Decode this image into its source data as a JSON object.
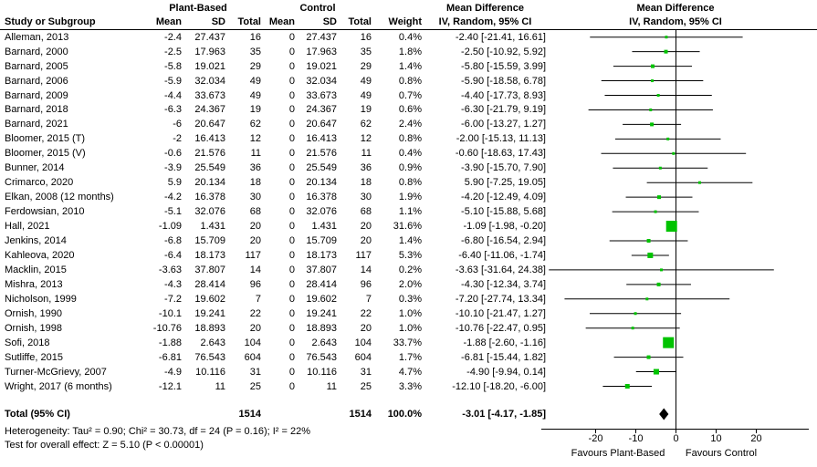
{
  "header": {
    "study": "Study or Subgroup",
    "group1": "Plant-Based",
    "group2": "Control",
    "mean": "Mean",
    "sd": "SD",
    "total": "Total",
    "weight": "Weight",
    "md_title": "Mean Difference",
    "md_subtitle": "IV, Random, 95% CI"
  },
  "footer": {
    "heterogeneity": "Heterogeneity: Tau² = 0.90; Chi² = 30.73, df = 24 (P = 0.16); I² = 22%",
    "overall_effect": "Test for overall effect: Z = 5.10 (P < 0.00001)"
  },
  "chart_data": {
    "type": "forest",
    "title": "Mean Difference — IV, Random, 95% CI",
    "xlim": [
      -33.5,
      33.5
    ],
    "x_ticks": [
      -20,
      -10,
      0,
      10,
      20
    ],
    "favours_left": "Favours Plant-Based",
    "favours_right": "Favours Control",
    "marker_color": "#00c300",
    "line_color": "#000000",
    "studies": [
      {
        "name": "Alleman, 2013",
        "pb_mean": "-2.4",
        "pb_sd": "27.437",
        "pb_total": "16",
        "c_mean": "0",
        "c_sd": "27.437",
        "c_total": "16",
        "weight": "0.4%",
        "ci_label": "-2.40 [-21.41, 16.61]",
        "md": -2.4,
        "lo": -21.41,
        "hi": 16.61
      },
      {
        "name": "Barnard, 2000",
        "pb_mean": "-2.5",
        "pb_sd": "17.963",
        "pb_total": "35",
        "c_mean": "0",
        "c_sd": "17.963",
        "c_total": "35",
        "weight": "1.8%",
        "ci_label": "-2.50 [-10.92, 5.92]",
        "md": -2.5,
        "lo": -10.92,
        "hi": 5.92
      },
      {
        "name": "Barnard, 2005",
        "pb_mean": "-5.8",
        "pb_sd": "19.021",
        "pb_total": "29",
        "c_mean": "0",
        "c_sd": "19.021",
        "c_total": "29",
        "weight": "1.4%",
        "ci_label": "-5.80 [-15.59, 3.99]",
        "md": -5.8,
        "lo": -15.59,
        "hi": 3.99
      },
      {
        "name": "Barnard, 2006",
        "pb_mean": "-5.9",
        "pb_sd": "32.034",
        "pb_total": "49",
        "c_mean": "0",
        "c_sd": "32.034",
        "c_total": "49",
        "weight": "0.8%",
        "ci_label": "-5.90 [-18.58, 6.78]",
        "md": -5.9,
        "lo": -18.58,
        "hi": 6.78
      },
      {
        "name": "Barnard, 2009",
        "pb_mean": "-4.4",
        "pb_sd": "33.673",
        "pb_total": "49",
        "c_mean": "0",
        "c_sd": "33.673",
        "c_total": "49",
        "weight": "0.7%",
        "ci_label": "-4.40 [-17.73, 8.93]",
        "md": -4.4,
        "lo": -17.73,
        "hi": 8.93
      },
      {
        "name": "Barnard, 2018",
        "pb_mean": "-6.3",
        "pb_sd": "24.367",
        "pb_total": "19",
        "c_mean": "0",
        "c_sd": "24.367",
        "c_total": "19",
        "weight": "0.6%",
        "ci_label": "-6.30 [-21.79, 9.19]",
        "md": -6.3,
        "lo": -21.79,
        "hi": 9.19
      },
      {
        "name": "Barnard, 2021",
        "pb_mean": "-6",
        "pb_sd": "20.647",
        "pb_total": "62",
        "c_mean": "0",
        "c_sd": "20.647",
        "c_total": "62",
        "weight": "2.4%",
        "ci_label": "-6.00 [-13.27, 1.27]",
        "md": -6.0,
        "lo": -13.27,
        "hi": 1.27
      },
      {
        "name": "Bloomer, 2015 (T)",
        "pb_mean": "-2",
        "pb_sd": "16.413",
        "pb_total": "12",
        "c_mean": "0",
        "c_sd": "16.413",
        "c_total": "12",
        "weight": "0.8%",
        "ci_label": "-2.00 [-15.13, 11.13]",
        "md": -2.0,
        "lo": -15.13,
        "hi": 11.13
      },
      {
        "name": "Bloomer, 2015 (V)",
        "pb_mean": "-0.6",
        "pb_sd": "21.576",
        "pb_total": "11",
        "c_mean": "0",
        "c_sd": "21.576",
        "c_total": "11",
        "weight": "0.4%",
        "ci_label": "-0.60 [-18.63, 17.43]",
        "md": -0.6,
        "lo": -18.63,
        "hi": 17.43
      },
      {
        "name": "Bunner, 2014",
        "pb_mean": "-3.9",
        "pb_sd": "25.549",
        "pb_total": "36",
        "c_mean": "0",
        "c_sd": "25.549",
        "c_total": "36",
        "weight": "0.9%",
        "ci_label": "-3.90 [-15.70, 7.90]",
        "md": -3.9,
        "lo": -15.7,
        "hi": 7.9
      },
      {
        "name": "Crimarco, 2020",
        "pb_mean": "5.9",
        "pb_sd": "20.134",
        "pb_total": "18",
        "c_mean": "0",
        "c_sd": "20.134",
        "c_total": "18",
        "weight": "0.8%",
        "ci_label": "5.90 [-7.25, 19.05]",
        "md": 5.9,
        "lo": -7.25,
        "hi": 19.05
      },
      {
        "name": "Elkan, 2008 (12 months)",
        "pb_mean": "-4.2",
        "pb_sd": "16.378",
        "pb_total": "30",
        "c_mean": "0",
        "c_sd": "16.378",
        "c_total": "30",
        "weight": "1.9%",
        "ci_label": "-4.20 [-12.49, 4.09]",
        "md": -4.2,
        "lo": -12.49,
        "hi": 4.09
      },
      {
        "name": "Ferdowsian, 2010",
        "pb_mean": "-5.1",
        "pb_sd": "32.076",
        "pb_total": "68",
        "c_mean": "0",
        "c_sd": "32.076",
        "c_total": "68",
        "weight": "1.1%",
        "ci_label": "-5.10 [-15.88, 5.68]",
        "md": -5.1,
        "lo": -15.88,
        "hi": 5.68
      },
      {
        "name": "Hall, 2021",
        "pb_mean": "-1.09",
        "pb_sd": "1.431",
        "pb_total": "20",
        "c_mean": "0",
        "c_sd": "1.431",
        "c_total": "20",
        "weight": "31.6%",
        "ci_label": "-1.09 [-1.98, -0.20]",
        "md": -1.09,
        "lo": -1.98,
        "hi": -0.2
      },
      {
        "name": "Jenkins, 2014",
        "pb_mean": "-6.8",
        "pb_sd": "15.709",
        "pb_total": "20",
        "c_mean": "0",
        "c_sd": "15.709",
        "c_total": "20",
        "weight": "1.4%",
        "ci_label": "-6.80 [-16.54, 2.94]",
        "md": -6.8,
        "lo": -16.54,
        "hi": 2.94
      },
      {
        "name": "Kahleova, 2020",
        "pb_mean": "-6.4",
        "pb_sd": "18.173",
        "pb_total": "117",
        "c_mean": "0",
        "c_sd": "18.173",
        "c_total": "117",
        "weight": "5.3%",
        "ci_label": "-6.40 [-11.06, -1.74]",
        "md": -6.4,
        "lo": -11.06,
        "hi": -1.74
      },
      {
        "name": "Macklin, 2015",
        "pb_mean": "-3.63",
        "pb_sd": "37.807",
        "pb_total": "14",
        "c_mean": "0",
        "c_sd": "37.807",
        "c_total": "14",
        "weight": "0.2%",
        "ci_label": "-3.63 [-31.64, 24.38]",
        "md": -3.63,
        "lo": -31.64,
        "hi": 24.38
      },
      {
        "name": "Mishra, 2013",
        "pb_mean": "-4.3",
        "pb_sd": "28.414",
        "pb_total": "96",
        "c_mean": "0",
        "c_sd": "28.414",
        "c_total": "96",
        "weight": "2.0%",
        "ci_label": "-4.30 [-12.34, 3.74]",
        "md": -4.3,
        "lo": -12.34,
        "hi": 3.74
      },
      {
        "name": "Nicholson, 1999",
        "pb_mean": "-7.2",
        "pb_sd": "19.602",
        "pb_total": "7",
        "c_mean": "0",
        "c_sd": "19.602",
        "c_total": "7",
        "weight": "0.3%",
        "ci_label": "-7.20 [-27.74, 13.34]",
        "md": -7.2,
        "lo": -27.74,
        "hi": 13.34
      },
      {
        "name": "Ornish, 1990",
        "pb_mean": "-10.1",
        "pb_sd": "19.241",
        "pb_total": "22",
        "c_mean": "0",
        "c_sd": "19.241",
        "c_total": "22",
        "weight": "1.0%",
        "ci_label": "-10.10 [-21.47, 1.27]",
        "md": -10.1,
        "lo": -21.47,
        "hi": 1.27
      },
      {
        "name": "Ornish, 1998",
        "pb_mean": "-10.76",
        "pb_sd": "18.893",
        "pb_total": "20",
        "c_mean": "0",
        "c_sd": "18.893",
        "c_total": "20",
        "weight": "1.0%",
        "ci_label": "-10.76 [-22.47, 0.95]",
        "md": -10.76,
        "lo": -22.47,
        "hi": 0.95
      },
      {
        "name": "Sofi, 2018",
        "pb_mean": "-1.88",
        "pb_sd": "2.643",
        "pb_total": "104",
        "c_mean": "0",
        "c_sd": "2.643",
        "c_total": "104",
        "weight": "33.7%",
        "ci_label": "-1.88 [-2.60, -1.16]",
        "md": -1.88,
        "lo": -2.6,
        "hi": -1.16
      },
      {
        "name": "Sutliffe, 2015",
        "pb_mean": "-6.81",
        "pb_sd": "76.543",
        "pb_total": "604",
        "c_mean": "0",
        "c_sd": "76.543",
        "c_total": "604",
        "weight": "1.7%",
        "ci_label": "-6.81 [-15.44, 1.82]",
        "md": -6.81,
        "lo": -15.44,
        "hi": 1.82
      },
      {
        "name": "Turner-McGrievy, 2007",
        "pb_mean": "-4.9",
        "pb_sd": "10.116",
        "pb_total": "31",
        "c_mean": "0",
        "c_sd": "10.116",
        "c_total": "31",
        "weight": "4.7%",
        "ci_label": "-4.90 [-9.94, 0.14]",
        "md": -4.9,
        "lo": -9.94,
        "hi": 0.14
      },
      {
        "name": "Wright, 2017 (6 months)",
        "pb_mean": "-12.1",
        "pb_sd": "11",
        "pb_total": "25",
        "c_mean": "0",
        "c_sd": "11",
        "c_total": "25",
        "weight": "3.3%",
        "ci_label": "-12.10 [-18.20, -6.00]",
        "md": -12.1,
        "lo": -18.2,
        "hi": -6.0
      }
    ],
    "total": {
      "label": "Total (95% CI)",
      "pb_total": "1514",
      "c_total": "1514",
      "weight": "100.0%",
      "ci_label": "-3.01 [-4.17, -1.85]",
      "md": -3.01,
      "lo": -4.17,
      "hi": -1.85
    }
  }
}
